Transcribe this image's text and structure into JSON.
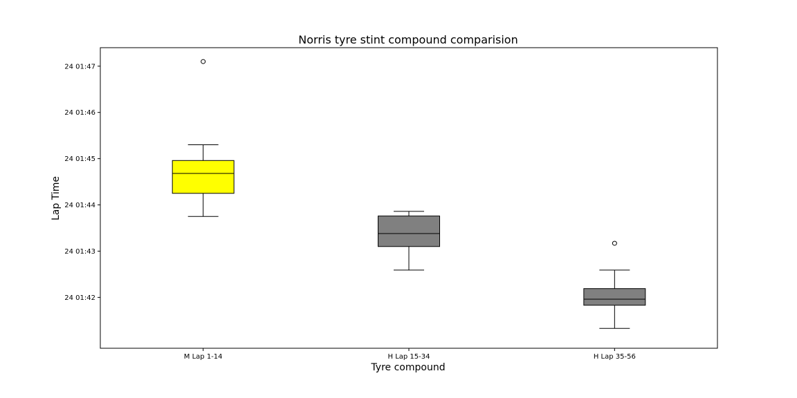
{
  "chart_data": {
    "type": "box",
    "title": "Norris tyre stint compound comparision",
    "xlabel": "Tyre compound",
    "ylabel": "Lap Time",
    "ylim": [
      100.9,
      107.4
    ],
    "yticks": [
      {
        "value": 102,
        "label": "24 01:42"
      },
      {
        "value": 103,
        "label": "24 01:43"
      },
      {
        "value": 104,
        "label": "24 01:44"
      },
      {
        "value": 105,
        "label": "24 01:45"
      },
      {
        "value": 106,
        "label": "24 01:46"
      },
      {
        "value": 107,
        "label": "24 01:47"
      }
    ],
    "categories": [
      "M Lap 1-14",
      "H Lap 15-34",
      "H Lap 35-56"
    ],
    "boxes": [
      {
        "category": "M Lap 1-14",
        "color": "#ffff00",
        "whisker_low": 103.75,
        "q1": 104.25,
        "median": 104.68,
        "q3": 104.96,
        "whisker_high": 105.3,
        "outliers": [
          107.1
        ]
      },
      {
        "category": "H Lap 15-34",
        "color": "#808080",
        "whisker_low": 102.59,
        "q1": 103.1,
        "median": 103.38,
        "q3": 103.76,
        "whisker_high": 103.86,
        "outliers": []
      },
      {
        "category": "H Lap 35-56",
        "color": "#808080",
        "whisker_low": 101.33,
        "q1": 101.83,
        "median": 101.96,
        "q3": 102.19,
        "whisker_high": 102.59,
        "outliers": [
          103.17
        ]
      }
    ],
    "grid": false,
    "legend": "none"
  }
}
